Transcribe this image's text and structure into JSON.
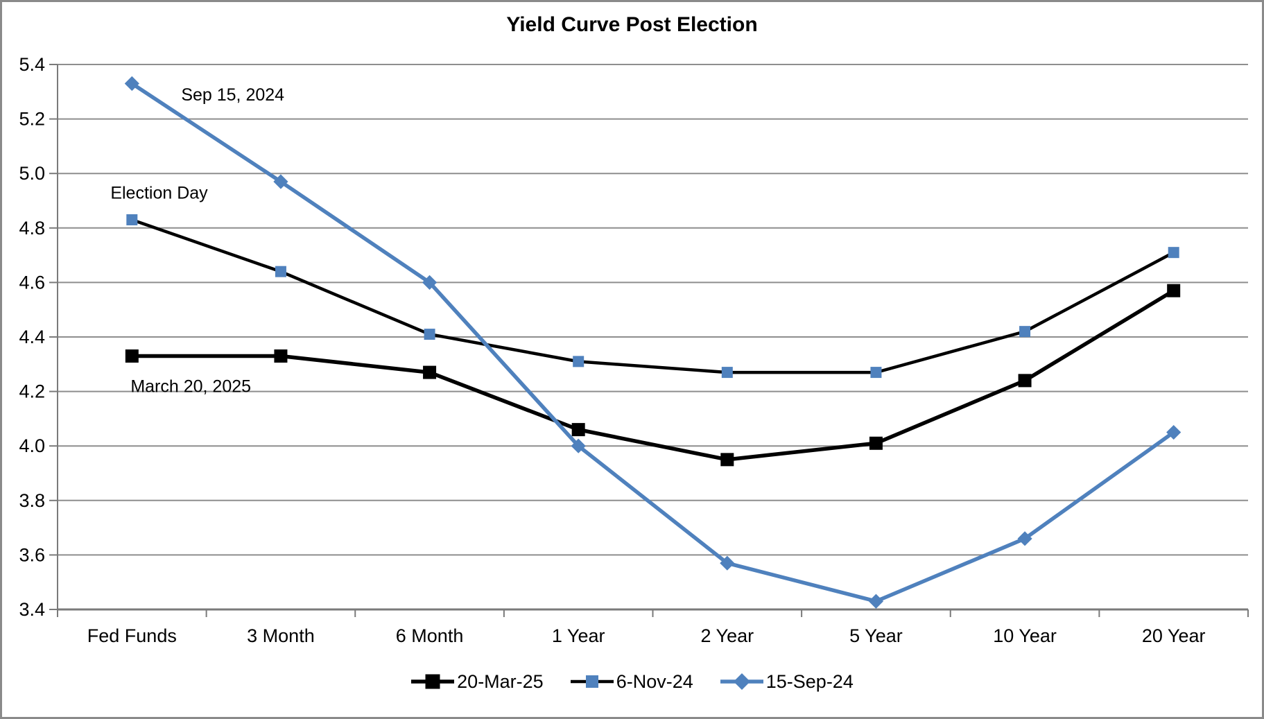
{
  "window": {
    "title": "Yield Curve Post Election"
  },
  "chart_data": {
    "type": "line",
    "title": "Yield Curve Post Election",
    "categories": [
      "Fed Funds",
      "3 Month",
      "6 Month",
      "1 Year",
      "2 Year",
      "5 Year",
      "10 Year",
      "20 Year"
    ],
    "series": [
      {
        "name": "20-Mar-25",
        "values": [
          4.33,
          4.33,
          4.27,
          4.06,
          3.95,
          4.01,
          4.24,
          4.57
        ],
        "line_color": "#000000",
        "line_width": 5.5,
        "marker": "square",
        "marker_color": "#000000",
        "marker_size": 19
      },
      {
        "name": "6-Nov-24",
        "values": [
          4.83,
          4.64,
          4.41,
          4.31,
          4.27,
          4.27,
          4.42,
          4.71
        ],
        "line_color": "#000000",
        "line_width": 4.5,
        "marker": "square",
        "marker_color": "#4F81BD",
        "marker_size": 16
      },
      {
        "name": "15-Sep-24",
        "values": [
          5.33,
          4.97,
          4.6,
          4.0,
          3.57,
          3.43,
          3.66,
          4.05
        ],
        "line_color": "#4F81BD",
        "line_width": 5.5,
        "marker": "diamond",
        "marker_color": "#4F81BD",
        "marker_size": 15
      }
    ],
    "y_axis": {
      "min": 3.4,
      "max": 5.4,
      "step": 0.2,
      "tick_labels": [
        "3.4",
        "3.6",
        "3.8",
        "4.0",
        "4.2",
        "4.4",
        "4.6",
        "4.8",
        "5.0",
        "5.2",
        "5.4"
      ]
    },
    "annotations": [
      {
        "text": "Sep 15, 2024",
        "category_index": 0,
        "value": 5.29,
        "dx": 71
      },
      {
        "text": "Election Day",
        "category_index": 0,
        "value": 4.93,
        "dx": -31
      },
      {
        "text": "March 20, 2025",
        "category_index": 0,
        "value": 4.22,
        "dx": -2
      }
    ],
    "grid": true,
    "legend_position": "bottom",
    "ylim": [
      3.4,
      5.4
    ],
    "colors": {
      "accent_blue": "#4F81BD",
      "gridline": "#8e8e8e",
      "axis": "#7a7a7a",
      "frame_border": "#8a8a8a",
      "text": "#000000"
    }
  }
}
